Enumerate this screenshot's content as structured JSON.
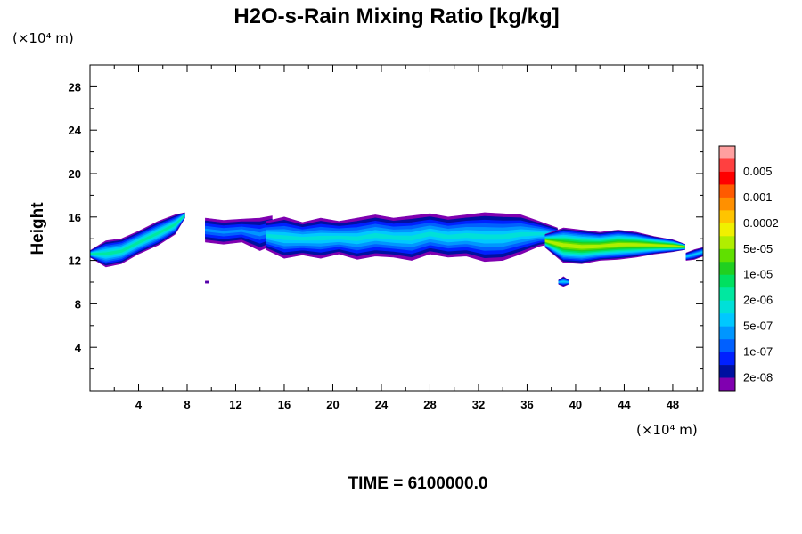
{
  "chart_data": {
    "type": "contour",
    "title": "H2O-s-Rain Mixing Ratio [kg/kg]",
    "ylabel": "Height",
    "x_unit": "(×10⁴ m)",
    "y_unit": "(×10⁴ m)",
    "xlim": [
      0,
      50.5
    ],
    "ylim": [
      0,
      30
    ],
    "x_ticks": [
      4,
      8,
      12,
      16,
      20,
      24,
      28,
      32,
      36,
      40,
      44,
      48
    ],
    "y_ticks": [
      4,
      8,
      12,
      16,
      20,
      24,
      28
    ],
    "time_label": "TIME = 6100000.0",
    "legend": {
      "levels": [
        {
          "label": "",
          "color": "#ffa0a0"
        },
        {
          "label": "0.005",
          "color": "#ff4040"
        },
        {
          "label": "",
          "color": "#ff0000"
        },
        {
          "label": "0.001",
          "color": "#ff5a00"
        },
        {
          "label": "",
          "color": "#ff9000"
        },
        {
          "label": "0.0002",
          "color": "#ffc400"
        },
        {
          "label": "",
          "color": "#f0f000"
        },
        {
          "label": "5e-05",
          "color": "#b0ee00"
        },
        {
          "label": "",
          "color": "#60e000"
        },
        {
          "label": "1e-05",
          "color": "#20d020"
        },
        {
          "label": "",
          "color": "#00e060"
        },
        {
          "label": "2e-06",
          "color": "#00e8a0"
        },
        {
          "label": "",
          "color": "#00e0d8"
        },
        {
          "label": "5e-07",
          "color": "#00c8ff"
        },
        {
          "label": "",
          "color": "#0096ff"
        },
        {
          "label": "1e-07",
          "color": "#0060ff"
        },
        {
          "label": "",
          "color": "#0020ff"
        },
        {
          "label": "2e-08",
          "color": "#0010a0"
        },
        {
          "label": "",
          "color": "#8000b0"
        }
      ]
    },
    "cloud_regions": [
      {
        "x": [
          0,
          1.3,
          2.6,
          4.0,
          5.6,
          7.0,
          7.8
        ],
        "y": [
          [
            12.3,
            12.9
          ],
          [
            11.4,
            13.8
          ],
          [
            11.7,
            14.0
          ],
          [
            12.6,
            14.7
          ],
          [
            13.4,
            15.6
          ],
          [
            14.4,
            16.2
          ],
          [
            15.9,
            16.4
          ]
        ],
        "peak": 11
      },
      {
        "x": [
          9.5,
          11.0,
          12.5,
          14.0,
          15.0
        ],
        "y": [
          [
            13.7,
            15.9
          ],
          [
            13.5,
            15.7
          ],
          [
            13.7,
            15.8
          ],
          [
            12.9,
            15.9
          ],
          [
            13.4,
            16.1
          ]
        ],
        "peak": 14
      },
      {
        "x": [
          14.5,
          16.0,
          17.5,
          19.0,
          20.5,
          22.0,
          23.5,
          25.0,
          26.5,
          28.0,
          29.5,
          31.0,
          32.5,
          34.0,
          35.5,
          37.0,
          38.5
        ],
        "y": [
          [
            13.0,
            15.6
          ],
          [
            12.2,
            16.0
          ],
          [
            12.5,
            15.5
          ],
          [
            12.2,
            15.9
          ],
          [
            12.6,
            15.6
          ],
          [
            12.1,
            15.9
          ],
          [
            12.4,
            16.2
          ],
          [
            12.3,
            15.9
          ],
          [
            12.0,
            16.1
          ],
          [
            12.6,
            16.3
          ],
          [
            12.3,
            16.0
          ],
          [
            12.4,
            16.2
          ],
          [
            11.9,
            16.4
          ],
          [
            12.0,
            16.3
          ],
          [
            12.6,
            16.2
          ],
          [
            13.3,
            15.6
          ],
          [
            13.7,
            15.0
          ]
        ],
        "peak": 12
      },
      {
        "x": [
          37.5,
          39.0,
          40.5,
          42.0,
          43.5,
          45.0,
          46.5,
          48.0,
          49.0
        ],
        "y": [
          [
            13.2,
            14.4
          ],
          [
            11.8,
            15.0
          ],
          [
            11.7,
            14.8
          ],
          [
            12.0,
            14.6
          ],
          [
            12.1,
            14.8
          ],
          [
            12.3,
            14.6
          ],
          [
            12.6,
            14.2
          ],
          [
            12.8,
            13.9
          ],
          [
            13.0,
            13.5
          ]
        ],
        "peak": 7
      },
      {
        "x": [
          49.1,
          49.8,
          50.5
        ],
        "y": [
          [
            12.0,
            12.7
          ],
          [
            12.1,
            13.0
          ],
          [
            12.4,
            13.2
          ]
        ],
        "peak": 13
      },
      {
        "x": [
          38.6,
          39.0,
          39.4
        ],
        "y": [
          [
            9.8,
            10.2
          ],
          [
            9.6,
            10.5
          ],
          [
            9.8,
            10.2
          ]
        ],
        "peak": 13
      },
      {
        "x": [
          9.5,
          9.8
        ],
        "y": [
          [
            9.9,
            10.1
          ],
          [
            9.9,
            10.1
          ]
        ],
        "peak": 17
      }
    ]
  }
}
